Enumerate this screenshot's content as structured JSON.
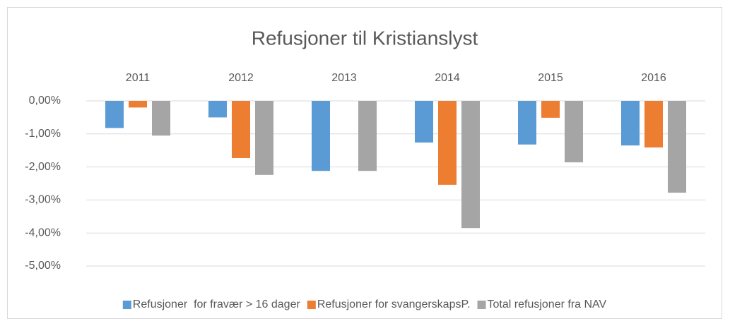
{
  "chart_data": {
    "type": "bar",
    "title": "Refusjoner til Kristianslyst",
    "categories": [
      "2011",
      "2012",
      "2013",
      "2014",
      "2015",
      "2016"
    ],
    "series": [
      {
        "name": "Refusjoner  for fravær > 16 dager",
        "color": "#5b9bd5",
        "values": [
          -0.82,
          -0.5,
          -2.12,
          -1.26,
          -1.32,
          -1.35
        ]
      },
      {
        "name": "Refusjoner for svangerskapsP.",
        "color": "#ed7d31",
        "values": [
          -0.2,
          -1.73,
          0,
          -2.54,
          -0.51,
          -1.41
        ]
      },
      {
        "name": "Total refusjoner fra NAV",
        "color": "#a5a5a5",
        "values": [
          -1.05,
          -2.24,
          -2.12,
          -3.85,
          -1.86,
          -2.78
        ]
      }
    ],
    "ylim": [
      -5,
      0
    ],
    "yticks": [
      {
        "value": 0,
        "label": "0,00%"
      },
      {
        "value": -1,
        "label": "-1,00%"
      },
      {
        "value": -2,
        "label": "-2,00%"
      },
      {
        "value": -3,
        "label": "-3,00%"
      },
      {
        "value": -4,
        "label": "-4,00%"
      },
      {
        "value": -5,
        "label": "-5,00%"
      }
    ],
    "grid": true,
    "legend": "bottom"
  }
}
